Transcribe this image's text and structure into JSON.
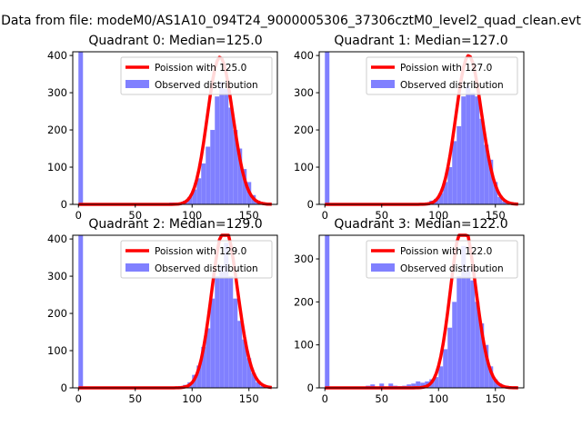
{
  "suptitle": "Data from file: modeM0/AS1A10_094T24_9000005306_37306cztM0_level2_quad_clean.evt",
  "colors": {
    "hist": "#8080ff",
    "poisson": "#ff0000",
    "poisson_alpha": "#ff8080"
  },
  "chart_data": [
    {
      "type": "bar",
      "title": "Quadrant 0: Median=125.0",
      "median": 125.0,
      "xlim": [
        -5,
        175
      ],
      "ylim": [
        0,
        410
      ],
      "xticks": [
        "0",
        "50",
        "100",
        "150"
      ],
      "yticks": [
        "0",
        "100",
        "200",
        "300",
        "400"
      ],
      "legend": [
        "Poission with 125.0",
        "Observed distribution"
      ],
      "legend_location": "upper-right",
      "hist_bin_width": 4,
      "hist": [
        [
          0,
          420
        ],
        [
          80,
          5
        ],
        [
          84,
          5
        ],
        [
          88,
          3
        ],
        [
          92,
          10
        ],
        [
          96,
          20
        ],
        [
          100,
          40
        ],
        [
          104,
          70
        ],
        [
          108,
          110
        ],
        [
          112,
          155
        ],
        [
          116,
          200
        ],
        [
          120,
          290
        ],
        [
          124,
          330
        ],
        [
          128,
          310
        ],
        [
          132,
          260
        ],
        [
          136,
          200
        ],
        [
          140,
          150
        ],
        [
          144,
          95
        ],
        [
          148,
          60
        ],
        [
          152,
          25
        ],
        [
          156,
          10
        ],
        [
          160,
          2
        ]
      ]
    },
    {
      "type": "bar",
      "title": "Quadrant 1: Median=127.0",
      "median": 127.0,
      "xlim": [
        -5,
        175
      ],
      "ylim": [
        0,
        410
      ],
      "xticks": [
        "0",
        "50",
        "100",
        "150"
      ],
      "yticks": [
        "0",
        "100",
        "200",
        "300",
        "400"
      ],
      "legend": [
        "Poission with 127.0",
        "Observed distribution"
      ],
      "legend_location": "upper-right",
      "hist_bin_width": 4,
      "hist": [
        [
          0,
          420
        ],
        [
          84,
          3
        ],
        [
          88,
          5
        ],
        [
          92,
          10
        ],
        [
          96,
          15
        ],
        [
          100,
          30
        ],
        [
          104,
          60
        ],
        [
          108,
          100
        ],
        [
          112,
          170
        ],
        [
          116,
          210
        ],
        [
          120,
          290
        ],
        [
          124,
          320
        ],
        [
          128,
          300
        ],
        [
          132,
          290
        ],
        [
          136,
          230
        ],
        [
          140,
          160
        ],
        [
          144,
          120
        ],
        [
          148,
          60
        ],
        [
          152,
          20
        ],
        [
          156,
          8
        ],
        [
          160,
          2
        ]
      ]
    },
    {
      "type": "bar",
      "title": "Quadrant 2: Median=129.0",
      "median": 129.0,
      "xlim": [
        -5,
        175
      ],
      "ylim": [
        0,
        410
      ],
      "xticks": [
        "0",
        "50",
        "100",
        "150"
      ],
      "yticks": [
        "0",
        "100",
        "200",
        "300",
        "400"
      ],
      "legend": [
        "Poission with 129.0",
        "Observed distribution"
      ],
      "legend_location": "upper-right",
      "hist_bin_width": 4,
      "hist": [
        [
          0,
          420
        ],
        [
          84,
          3
        ],
        [
          88,
          5
        ],
        [
          92,
          8
        ],
        [
          96,
          15
        ],
        [
          100,
          35
        ],
        [
          104,
          60
        ],
        [
          108,
          110
        ],
        [
          112,
          160
        ],
        [
          116,
          240
        ],
        [
          120,
          300
        ],
        [
          124,
          330
        ],
        [
          128,
          390
        ],
        [
          132,
          300
        ],
        [
          136,
          240
        ],
        [
          140,
          180
        ],
        [
          144,
          130
        ],
        [
          148,
          80
        ],
        [
          152,
          40
        ],
        [
          156,
          15
        ],
        [
          160,
          5
        ]
      ]
    },
    {
      "type": "bar",
      "title": "Quadrant 3: Median=122.0",
      "median": 122.0,
      "xlim": [
        -5,
        175
      ],
      "ylim": [
        0,
        355
      ],
      "xticks": [
        "0",
        "50",
        "100",
        "150"
      ],
      "yticks": [
        "0",
        "100",
        "200",
        "300"
      ],
      "legend": [
        "Poission with 122.0",
        "Observed distribution"
      ],
      "legend_location": "upper-right",
      "hist_bin_width": 4,
      "hist": [
        [
          0,
          360
        ],
        [
          36,
          5
        ],
        [
          40,
          8
        ],
        [
          44,
          3
        ],
        [
          48,
          10
        ],
        [
          52,
          3
        ],
        [
          56,
          10
        ],
        [
          60,
          5
        ],
        [
          64,
          4
        ],
        [
          68,
          5
        ],
        [
          72,
          8
        ],
        [
          76,
          10
        ],
        [
          80,
          15
        ],
        [
          84,
          12
        ],
        [
          88,
          15
        ],
        [
          92,
          20
        ],
        [
          96,
          25
        ],
        [
          100,
          50
        ],
        [
          104,
          90
        ],
        [
          108,
          140
        ],
        [
          112,
          200
        ],
        [
          116,
          260
        ],
        [
          120,
          330
        ],
        [
          124,
          280
        ],
        [
          128,
          250
        ],
        [
          132,
          200
        ],
        [
          136,
          150
        ],
        [
          140,
          100
        ],
        [
          144,
          50
        ],
        [
          148,
          20
        ],
        [
          152,
          10
        ],
        [
          156,
          5
        ]
      ]
    }
  ]
}
